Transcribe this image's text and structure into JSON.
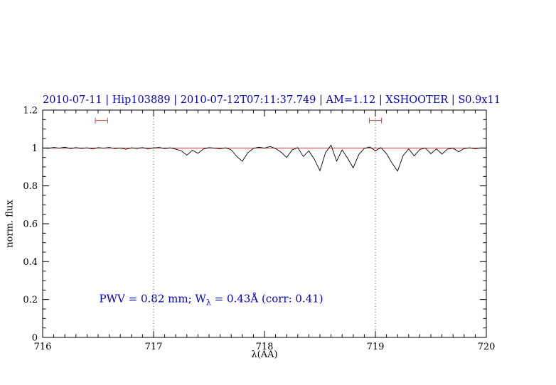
{
  "chart_data": {
    "type": "line",
    "title": "2010-07-11 | Hip103889 | 2010-07-12T07:11:37.749 | AM=1.12 | XSHOOTER | S0.9x11",
    "title_color": "#0000cd",
    "xlabel": "λ(AA)",
    "ylabel": "norm. flux",
    "xlim": [
      716,
      720
    ],
    "ylim": [
      0,
      1.2
    ],
    "x_tick_values": [
      716,
      717,
      718,
      719,
      720
    ],
    "x_tick_labels": [
      "716",
      "717",
      "718",
      "719",
      "720"
    ],
    "x_minor_step": 0.1,
    "y_tick_values": [
      0,
      0.2,
      0.4,
      0.6,
      0.8,
      1,
      1.2
    ],
    "y_tick_labels": [
      "0",
      "0.2",
      "0.4",
      "0.6",
      "0.8",
      "1",
      "1.2"
    ],
    "y_minor_step": 0.05,
    "grid": false,
    "frame_color": "#000000",
    "vlines": {
      "x": [
        717,
        719
      ],
      "style": "dotted",
      "color": "#444444"
    },
    "continuum": {
      "y": 1.0,
      "color": "#cc2222"
    },
    "telluric_markers": [
      {
        "x_center": 716.53,
        "half_width": 0.055,
        "y": 1.145,
        "color": "#cc4444"
      },
      {
        "x_center": 719.0,
        "half_width": 0.055,
        "y": 1.145,
        "color": "#cc4444"
      }
    ],
    "annotation": {
      "pre": "PWV  =  0.82 mm; W",
      "sub": "λ",
      "post": "  =  0.43Å  (corr: 0.41)",
      "x": 716.51,
      "y": 0.2,
      "color": "#0000cd"
    },
    "series": [
      {
        "name": "normalized spectrum",
        "color": "#000000",
        "points": [
          [
            716.0,
            1.0
          ],
          [
            716.05,
            0.998
          ],
          [
            716.1,
            1.003
          ],
          [
            716.15,
            0.999
          ],
          [
            716.2,
            1.004
          ],
          [
            716.25,
            0.997
          ],
          [
            716.3,
            1.002
          ],
          [
            716.35,
            0.998
          ],
          [
            716.4,
            1.001
          ],
          [
            716.45,
            0.995
          ],
          [
            716.5,
            1.002
          ],
          [
            716.55,
            0.999
          ],
          [
            716.6,
            1.003
          ],
          [
            716.65,
            0.997
          ],
          [
            716.7,
            1.0
          ],
          [
            716.75,
            0.993
          ],
          [
            716.8,
            1.001
          ],
          [
            716.85,
            0.998
          ],
          [
            716.9,
            1.002
          ],
          [
            716.95,
            0.996
          ],
          [
            717.0,
            1.0
          ],
          [
            717.05,
            1.003
          ],
          [
            717.1,
            0.997
          ],
          [
            717.15,
            1.001
          ],
          [
            717.2,
            0.994
          ],
          [
            717.25,
            0.985
          ],
          [
            717.3,
            0.962
          ],
          [
            717.35,
            0.988
          ],
          [
            717.4,
            0.972
          ],
          [
            717.45,
            0.995
          ],
          [
            717.5,
            1.002
          ],
          [
            717.55,
            0.999
          ],
          [
            717.6,
            0.996
          ],
          [
            717.65,
            1.001
          ],
          [
            717.7,
            0.99
          ],
          [
            717.75,
            0.955
          ],
          [
            717.8,
            0.93
          ],
          [
            717.85,
            0.975
          ],
          [
            717.9,
            0.998
          ],
          [
            717.95,
            1.004
          ],
          [
            718.0,
            0.999
          ],
          [
            718.05,
            1.008
          ],
          [
            718.1,
            0.997
          ],
          [
            718.15,
            0.978
          ],
          [
            718.2,
            0.95
          ],
          [
            718.25,
            0.99
          ],
          [
            718.3,
            1.002
          ],
          [
            718.35,
            0.955
          ],
          [
            718.4,
            0.985
          ],
          [
            718.45,
            0.94
          ],
          [
            718.5,
            0.88
          ],
          [
            718.55,
            0.975
          ],
          [
            718.6,
            1.015
          ],
          [
            718.65,
            0.93
          ],
          [
            718.7,
            0.99
          ],
          [
            718.75,
            0.945
          ],
          [
            718.8,
            0.895
          ],
          [
            718.85,
            0.965
          ],
          [
            718.9,
            0.998
          ],
          [
            718.95,
            1.005
          ],
          [
            719.0,
            0.985
          ],
          [
            719.05,
            1.002
          ],
          [
            719.1,
            0.97
          ],
          [
            719.15,
            0.92
          ],
          [
            719.2,
            0.878
          ],
          [
            719.25,
            0.96
          ],
          [
            719.3,
            0.995
          ],
          [
            719.35,
            0.958
          ],
          [
            719.4,
            0.992
          ],
          [
            719.45,
            1.0
          ],
          [
            719.5,
            0.97
          ],
          [
            719.55,
            0.995
          ],
          [
            719.6,
            0.968
          ],
          [
            719.65,
            0.994
          ],
          [
            719.7,
            0.999
          ],
          [
            719.75,
            0.98
          ],
          [
            719.8,
            0.997
          ],
          [
            719.85,
            1.001
          ],
          [
            719.9,
            0.996
          ],
          [
            719.95,
            1.0
          ],
          [
            720.0,
            0.999
          ]
        ]
      }
    ]
  }
}
